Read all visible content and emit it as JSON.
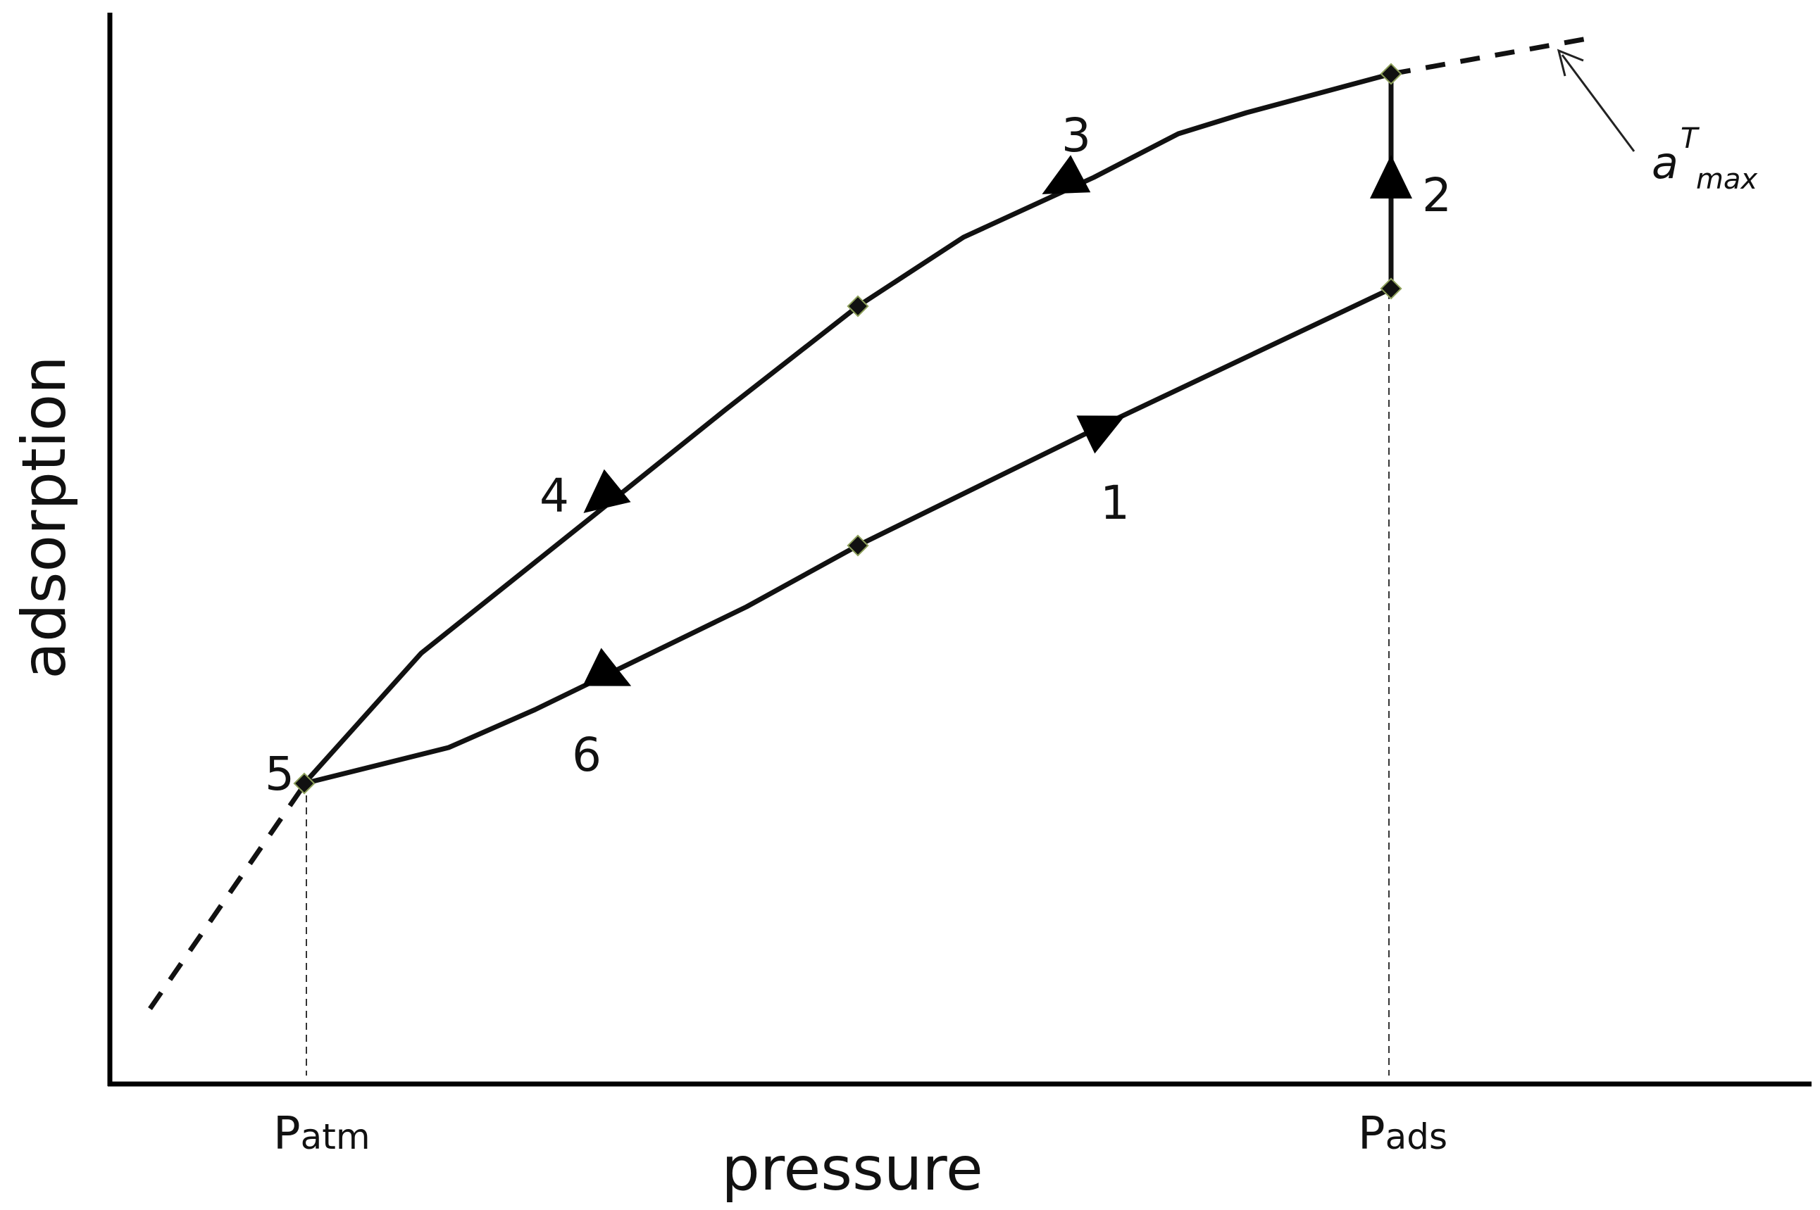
{
  "axes": {
    "x_label": "pressure",
    "y_label": "adsorption"
  },
  "ticks": {
    "p_atm": {
      "main": "P",
      "sub": "atm"
    },
    "p_ads": {
      "main": "P",
      "sub": "ads"
    }
  },
  "annotation": {
    "base": "a",
    "sup": "T",
    "sub": "max"
  },
  "points": {
    "p1": "1",
    "p2": "2",
    "p3": "3",
    "p4": "4",
    "p5": "5",
    "p6": "6"
  },
  "colors": {
    "line": "#111111",
    "marker_outline": "#8da05a",
    "background": "#ffffff"
  }
}
